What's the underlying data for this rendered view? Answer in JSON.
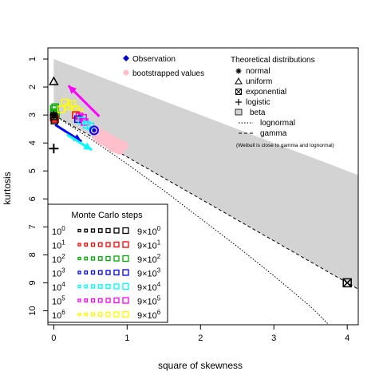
{
  "chart_data": {
    "type": "scatter",
    "xlabel": "square of skewness",
    "ylabel": "kurtosis",
    "xlim": [
      -0.08,
      4.15
    ],
    "ylim": [
      10.5,
      0.6
    ],
    "y_reversed": true,
    "x_ticks": [
      "0",
      "1",
      "2",
      "3",
      "4"
    ],
    "x_tick_values": [
      0,
      1,
      2,
      3,
      4
    ],
    "y_ticks": [
      "1",
      "2",
      "3",
      "4",
      "5",
      "6",
      "7",
      "8",
      "9",
      "10"
    ],
    "y_tick_values": [
      1,
      2,
      3,
      4,
      5,
      6,
      7,
      8,
      9,
      10
    ],
    "legend_top_left": [
      {
        "symbol": "diamond-filled",
        "color": "#0000cc",
        "label": "Observation"
      },
      {
        "symbol": "circle-filled",
        "color": "#ffc0cb",
        "label": "bootstrapped values"
      }
    ],
    "legend_top_right_title": "Theoretical distributions",
    "legend_top_right": [
      {
        "symbol": "asterisk",
        "label": "normal"
      },
      {
        "symbol": "triangle-open",
        "label": "uniform"
      },
      {
        "symbol": "square-x",
        "label": "exponential"
      },
      {
        "symbol": "plus",
        "label": "logistic"
      },
      {
        "symbol": "grey-box",
        "label": "beta"
      },
      {
        "symbol": "dotted-line",
        "label": "lognormal"
      },
      {
        "symbol": "dashed-line",
        "label": "gamma"
      }
    ],
    "legend_note": "(Weibull is close to gamma and lognormal)",
    "theoretical_points": {
      "normal": {
        "x": 0,
        "y": 3
      },
      "uniform": {
        "x": 0,
        "y": 1.8
      },
      "exponential": {
        "x": 4,
        "y": 9
      },
      "logistic": {
        "x": 0,
        "y": 4.2
      }
    },
    "beta_region_upper": [
      [
        0,
        1
      ],
      [
        4.15,
        5.15
      ]
    ],
    "beta_region_lower": [
      [
        0,
        3
      ],
      [
        4.15,
        9.225
      ]
    ],
    "gamma_line": [
      [
        0,
        3
      ],
      [
        4.15,
        9.225
      ]
    ],
    "lognormal_curve": [
      [
        0,
        3
      ],
      [
        0.5,
        3.85
      ],
      [
        1,
        4.75
      ],
      [
        1.5,
        5.7
      ],
      [
        2,
        6.7
      ],
      [
        2.5,
        7.7
      ],
      [
        3,
        8.75
      ],
      [
        3.5,
        9.85
      ],
      [
        3.75,
        10.5
      ]
    ],
    "bootstrap_cloud": [
      {
        "x": 0.55,
        "y": 3.5
      },
      {
        "x": 0.6,
        "y": 3.6
      },
      {
        "x": 0.65,
        "y": 3.7
      },
      {
        "x": 0.7,
        "y": 3.75
      },
      {
        "x": 0.75,
        "y": 3.85
      },
      {
        "x": 0.8,
        "y": 3.9
      },
      {
        "x": 0.85,
        "y": 4.0
      },
      {
        "x": 0.9,
        "y": 4.05
      },
      {
        "x": 0.7,
        "y": 3.95
      },
      {
        "x": 0.75,
        "y": 4.05
      },
      {
        "x": 0.8,
        "y": 4.15
      },
      {
        "x": 0.6,
        "y": 3.8
      },
      {
        "x": 0.65,
        "y": 3.9
      },
      {
        "x": 0.85,
        "y": 4.2
      },
      {
        "x": 0.9,
        "y": 4.25
      },
      {
        "x": 0.95,
        "y": 4.1
      }
    ],
    "observation": {
      "x": 0.55,
      "y": 3.55
    },
    "mc_points": [
      {
        "x": 0.0,
        "y": 2.78,
        "color": "#00aa00"
      },
      {
        "x": 0.02,
        "y": 2.72,
        "color": "#00aa00"
      },
      {
        "x": 0.01,
        "y": 2.9,
        "color": "#00aa00"
      },
      {
        "x": 0.03,
        "y": 3.0,
        "color": "#00aa00"
      },
      {
        "x": 0.0,
        "y": 3.1,
        "color": "#ff0000"
      },
      {
        "x": 0.02,
        "y": 3.15,
        "color": "#ff0000"
      },
      {
        "x": 0.0,
        "y": 3.05,
        "color": "#000000"
      },
      {
        "x": 0.01,
        "y": 3.2,
        "color": "#000000"
      },
      {
        "x": 0.15,
        "y": 2.55,
        "color": "#ffff00"
      },
      {
        "x": 0.2,
        "y": 2.7,
        "color": "#ffff00"
      },
      {
        "x": 0.25,
        "y": 2.6,
        "color": "#ffff00"
      },
      {
        "x": 0.3,
        "y": 2.8,
        "color": "#ffff00"
      },
      {
        "x": 0.35,
        "y": 2.9,
        "color": "#ffff00"
      },
      {
        "x": 0.1,
        "y": 2.8,
        "color": "#ffff00"
      },
      {
        "x": 0.3,
        "y": 3.0,
        "color": "#ff0000"
      },
      {
        "x": 0.35,
        "y": 3.05,
        "color": "#ff00ff"
      },
      {
        "x": 0.4,
        "y": 3.1,
        "color": "#ff00ff"
      },
      {
        "x": 0.33,
        "y": 3.15,
        "color": "#0000ff"
      },
      {
        "x": 0.38,
        "y": 3.2,
        "color": "#00ffff"
      },
      {
        "x": 0.42,
        "y": 3.25,
        "color": "#ff00ff"
      },
      {
        "x": 0.45,
        "y": 3.35,
        "color": "#00ffff"
      },
      {
        "x": 0.5,
        "y": 3.4,
        "color": "#00ffff"
      }
    ],
    "arrows": [
      {
        "x1": 0.62,
        "y1": 3.05,
        "x2": 0.2,
        "y2": 1.95,
        "color": "#ff00ff"
      },
      {
        "x1": 0.02,
        "y1": 3.35,
        "x2": 0.38,
        "y2": 3.95,
        "color": "#0000ff"
      },
      {
        "x1": 0.18,
        "y1": 3.7,
        "x2": 0.52,
        "y2": 4.25,
        "color": "#00ffff"
      }
    ],
    "mc_legend_title": "Monte Carlo steps",
    "mc_legend": [
      {
        "left": "10",
        "exp": "0",
        "right": "9×10",
        "rexp": "0",
        "color": "#000000"
      },
      {
        "left": "10",
        "exp": "1",
        "right": "9×10",
        "rexp": "1",
        "color": "#ff0000"
      },
      {
        "left": "10",
        "exp": "2",
        "right": "9×10",
        "rexp": "2",
        "color": "#00aa00"
      },
      {
        "left": "10",
        "exp": "3",
        "right": "9×10",
        "rexp": "3",
        "color": "#0000ff"
      },
      {
        "left": "10",
        "exp": "4",
        "right": "9×10",
        "rexp": "4",
        "color": "#00ffff"
      },
      {
        "left": "10",
        "exp": "5",
        "right": "9×10",
        "rexp": "5",
        "color": "#ff00ff"
      },
      {
        "left": "10",
        "exp": "6",
        "right": "9×10",
        "rexp": "6",
        "color": "#ffff00"
      }
    ]
  }
}
